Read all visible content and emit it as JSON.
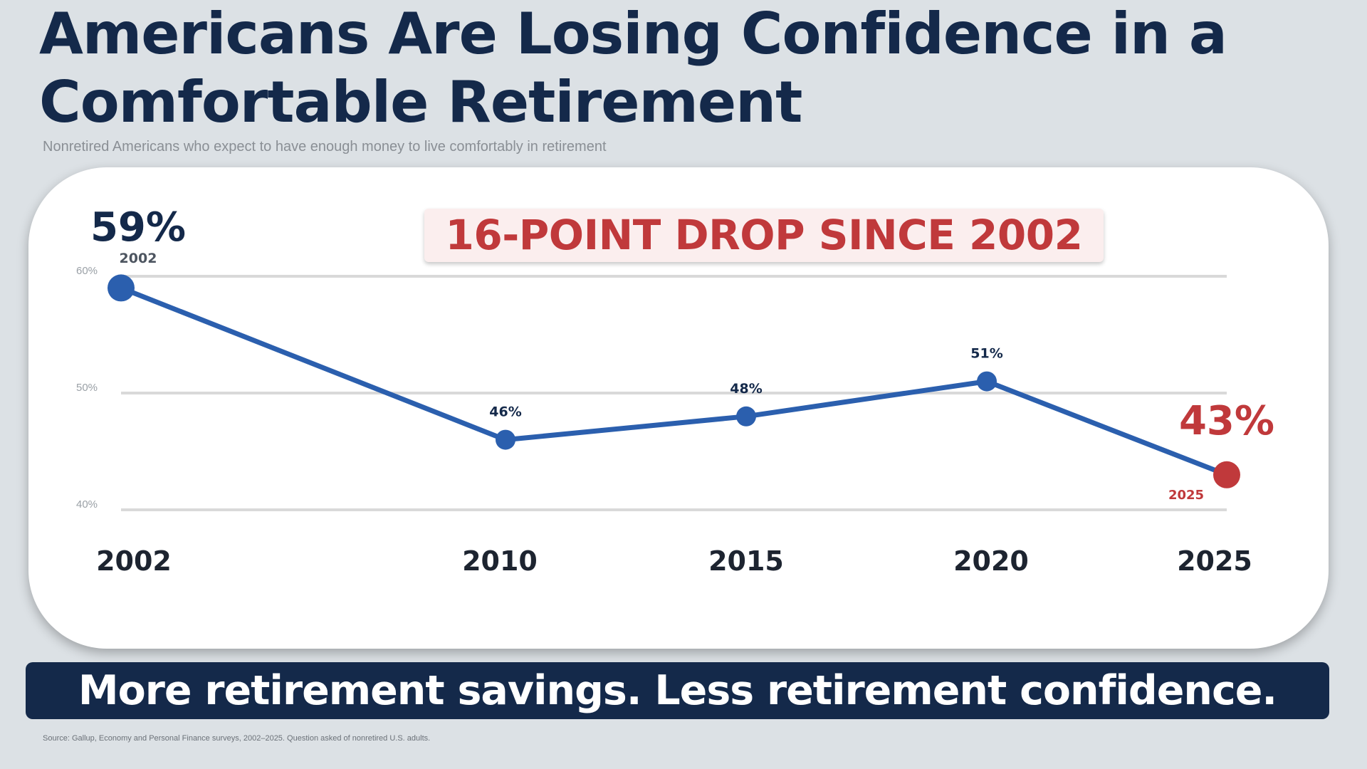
{
  "header": {
    "title_line1": "Americans Are Losing Confidence in a",
    "title_line2": "Comfortable Retirement",
    "subtitle": "Nonretired Americans who expect to have enough money to live comfortably in retirement"
  },
  "callout": "16-POINT DROP SINCE 2002",
  "banner": "More retirement savings.  Less retirement confidence.",
  "source": "Source: Gallup, Economy and Personal Finance surveys, 2002–2025. Question asked of nonretired U.S. adults.",
  "colors": {
    "navy": "#14294a",
    "line": "#2b5fae",
    "red": "#c0393b",
    "grid": "#d9d9d9"
  },
  "chart_data": {
    "type": "line",
    "title": "",
    "xlabel": "",
    "ylabel": "",
    "categories": [
      "2002",
      "2010",
      "2015",
      "2020",
      "2025"
    ],
    "values": [
      59,
      46,
      48,
      51,
      43
    ],
    "ylim": [
      40,
      60
    ],
    "yticks": [
      60,
      50,
      40
    ],
    "ytick_labels": [
      "60%",
      "50%",
      "40%"
    ],
    "grid": true,
    "point_labels": [
      "59%",
      "46%",
      "48%",
      "51%",
      "43%"
    ],
    "highlight_first": {
      "value_label": "59%",
      "year_label": "2002"
    },
    "highlight_last": {
      "value_label": "43%",
      "year_label": "2025"
    }
  }
}
